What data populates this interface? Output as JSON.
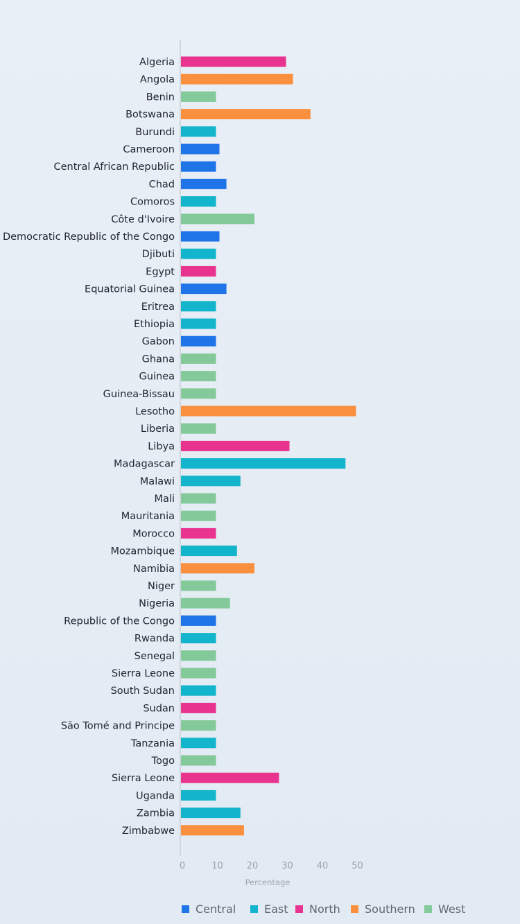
{
  "chart_data": {
    "type": "bar",
    "orientation": "horizontal",
    "categories": [
      "Algeria",
      "Angola",
      "Benin",
      "Botswana",
      "Burundi",
      "Cameroon",
      "Central African Republic",
      "Chad",
      "Comoros",
      "Côte d'Ivoire",
      "Democratic Republic of the Congo",
      "Djibuti",
      "Egypt",
      "Equatorial Guinea",
      "Eritrea",
      "Ethiopia",
      "Gabon",
      "Ghana",
      "Guinea",
      "Guinea-Bissau",
      "Lesotho",
      "Liberia",
      "Libya",
      "Madagascar",
      "Malawi",
      "Mali",
      "Mauritania",
      "Morocco",
      "Mozambique",
      "Namibia",
      "Niger",
      "Nigeria",
      "Republic of the Congo",
      "Rwanda",
      "Senegal",
      "Sierra Leone",
      "South Sudan",
      "Sudan",
      "São Tomé and Principe",
      "Tanzania",
      "Togo",
      "Sierra Leone",
      "Uganda",
      "Zambia",
      "Zimbabwe"
    ],
    "values": [
      30,
      32,
      10,
      37,
      10,
      11,
      10,
      13,
      10,
      21,
      11,
      10,
      10,
      13,
      10,
      10,
      10,
      10,
      10,
      10,
      50,
      10,
      31,
      47,
      17,
      10,
      10,
      10,
      16,
      21,
      10,
      14,
      10,
      10,
      10,
      10,
      10,
      10,
      10,
      10,
      10,
      28,
      10,
      17,
      18
    ],
    "regions": [
      "North",
      "Southern",
      "West",
      "Southern",
      "East",
      "Central",
      "Central",
      "Central",
      "East",
      "West",
      "Central",
      "East",
      "North",
      "Central",
      "East",
      "East",
      "Central",
      "West",
      "West",
      "West",
      "Southern",
      "West",
      "North",
      "East",
      "East",
      "West",
      "West",
      "North",
      "East",
      "Southern",
      "West",
      "West",
      "Central",
      "East",
      "West",
      "West",
      "East",
      "North",
      "West",
      "East",
      "West",
      "North",
      "East",
      "East",
      "Southern"
    ],
    "region_colors": {
      "Central": "#1f74e8",
      "East": "#12b5cb",
      "North": "#e8348f",
      "Southern": "#fa903e",
      "West": "#84c99a"
    },
    "legend": {
      "position": "bottom",
      "items": [
        "Central",
        "East",
        "North",
        "Southern",
        "West"
      ]
    },
    "xlabel": "Percentage",
    "xticks": [
      0,
      10,
      20,
      30,
      40,
      50
    ],
    "xlim": [
      0,
      50
    ],
    "grid": false
  }
}
